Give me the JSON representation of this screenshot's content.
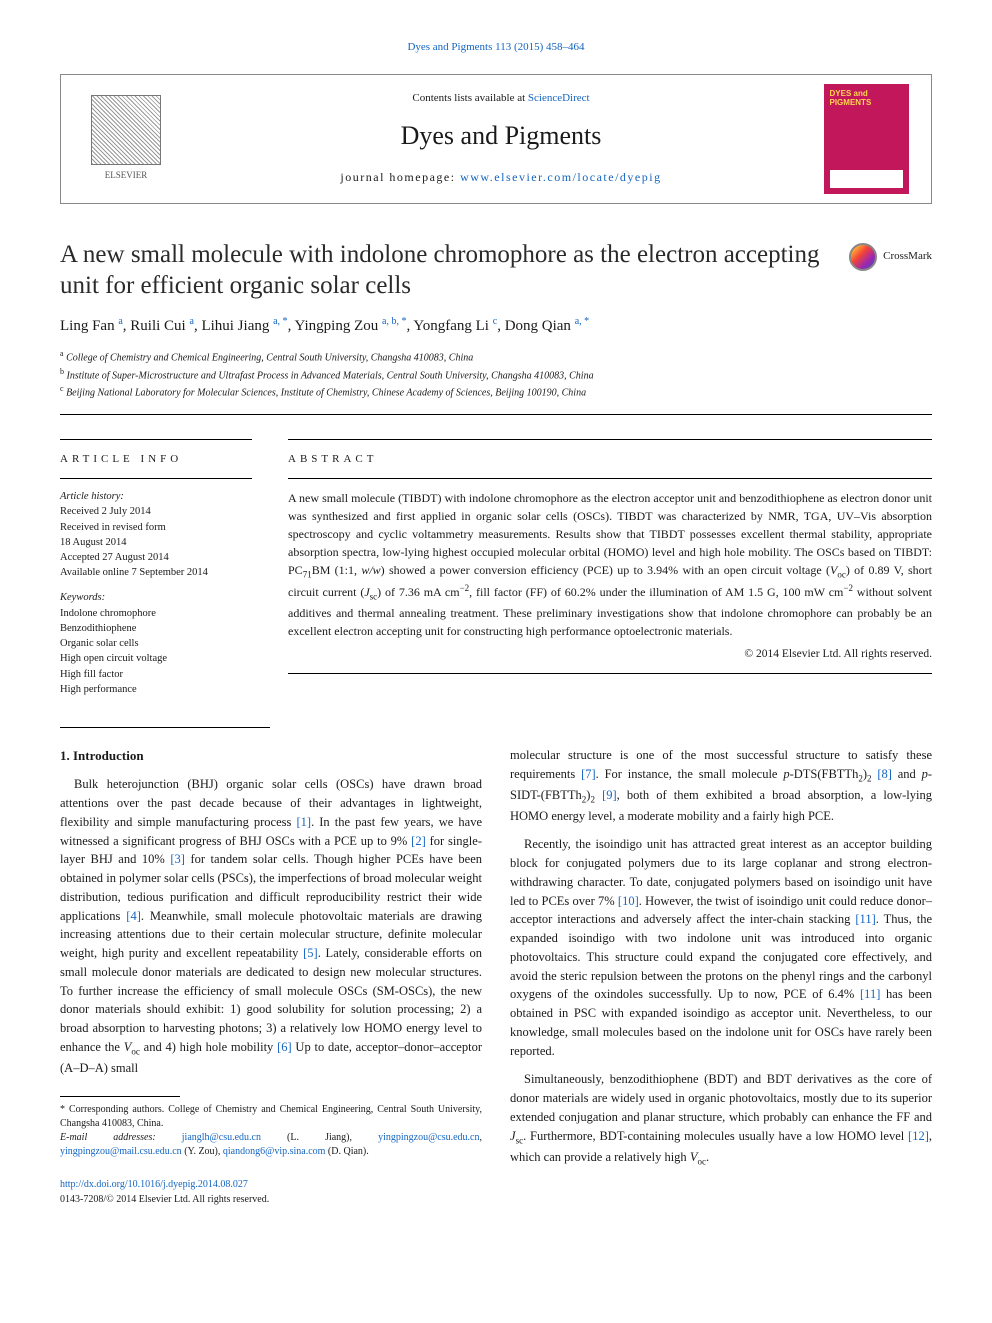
{
  "colors": {
    "link": "#1565c0",
    "cover_bg": "#c2185b",
    "cover_text": "#ffd54f",
    "text": "#1a1a1a"
  },
  "top_citation": "Dyes and Pigments 113 (2015) 458–464",
  "header": {
    "contents_prefix": "Contents lists available at ",
    "contents_link": "ScienceDirect",
    "journal": "Dyes and Pigments",
    "homepage_prefix": "journal homepage: ",
    "homepage_url": "www.elsevier.com/locate/dyepig",
    "publisher": "ELSEVIER",
    "cover_title": "DYES and PIGMENTS"
  },
  "crossmark": "CrossMark",
  "title": "A new small molecule with indolone chromophore as the electron accepting unit for efficient organic solar cells",
  "authors_html": "Ling Fan <sup>a</sup>, Ruili Cui <sup>a</sup>, Lihui Jiang <sup>a, *</sup>, Yingping Zou <sup>a, b, *</sup>, Yongfang Li <sup>c</sup>, Dong Qian <sup>a, *</sup>",
  "affiliations": [
    {
      "sup": "a",
      "text": "College of Chemistry and Chemical Engineering, Central South University, Changsha 410083, China"
    },
    {
      "sup": "b",
      "text": "Institute of Super-Microstructure and Ultrafast Process in Advanced Materials, Central South University, Changsha 410083, China"
    },
    {
      "sup": "c",
      "text": "Beijing National Laboratory for Molecular Sciences, Institute of Chemistry, Chinese Academy of Sciences, Beijing 100190, China"
    }
  ],
  "article_info": {
    "head": "ARTICLE INFO",
    "history_label": "Article history:",
    "history": [
      "Received 2 July 2014",
      "Received in revised form",
      "18 August 2014",
      "Accepted 27 August 2014",
      "Available online 7 September 2014"
    ],
    "keywords_label": "Keywords:",
    "keywords": [
      "Indolone chromophore",
      "Benzodithiophene",
      "Organic solar cells",
      "High open circuit voltage",
      "High fill factor",
      "High performance"
    ]
  },
  "abstract": {
    "head": "ABSTRACT",
    "text": "A new small molecule (TIBDT) with indolone chromophore as the electron acceptor unit and benzodithiophene as electron donor unit was synthesized and first applied in organic solar cells (OSCs). TIBDT was characterized by NMR, TGA, UV–Vis absorption spectroscopy and cyclic voltammetry measurements. Results show that TIBDT possesses excellent thermal stability, appropriate absorption spectra, low-lying highest occupied molecular orbital (HOMO) level and high hole mobility. The OSCs based on TIBDT: PC71BM (1:1, w/w) showed a power conversion efficiency (PCE) up to 3.94% with an open circuit voltage (Voc) of 0.89 V, short circuit current (Jsc) of 7.36 mA cm−2, fill factor (FF) of 60.2% under the illumination of AM 1.5 G, 100 mW cm−2 without solvent additives and thermal annealing treatment. These preliminary investigations show that indolone chromophore can probably be an excellent electron accepting unit for constructing high performance optoelectronic materials.",
    "copyright": "© 2014 Elsevier Ltd. All rights reserved."
  },
  "intro": {
    "heading": "1. Introduction",
    "p1_a": "Bulk heterojunction (BHJ) organic solar cells (OSCs) have drawn broad attentions over the past decade because of their advantages in lightweight, flexibility and simple manufacturing process ",
    "r1": "[1]",
    "p1_b": ". In the past few years, we have witnessed a significant progress of BHJ OSCs with a PCE up to 9% ",
    "r2": "[2]",
    "p1_c": " for single-layer BHJ and 10% ",
    "r3": "[3]",
    "p1_d": " for tandem solar cells. Though higher PCEs have been obtained in polymer solar cells (PSCs), the imperfections of broad molecular weight distribution, tedious purification and difficult reproducibility restrict their wide applications ",
    "r4": "[4]",
    "p1_e": ". Meanwhile, small molecule photovoltaic materials are drawing increasing attentions due to their certain molecular structure, definite molecular weight, high purity and excellent repeatability ",
    "r5": "[5]",
    "p1_f": ". Lately, considerable efforts on small molecule donor materials are dedicated to design new molecular structures. To further increase the efficiency of small molecule OSCs (SM-OSCs), the new donor materials should exhibit: 1) good solubility for solution processing; 2) a broad absorption to harvesting photons; 3) a relatively low HOMO energy level to enhance the ",
    "voc": "Voc",
    "p1_g": " and 4) high hole mobility ",
    "r6": "[6]",
    "p1_h": " Up to date, acceptor–donor–acceptor (A–D–A) small",
    "p1_right_a": "molecular structure is one of the most successful structure to satisfy these requirements ",
    "r7": "[7]",
    "p1_right_b": ". For instance, the small molecule ",
    "mol1": "p-DTS(FBTTh2)2",
    "r8": "[8]",
    "p1_right_c": " and ",
    "mol2": "p-SIDT-(FBTTh2)2",
    "r9": "[9]",
    "p1_right_d": ", both of them exhibited a broad absorption, a low-lying HOMO energy level, a moderate mobility and a fairly high PCE.",
    "p2_a": "Recently, the isoindigo unit has attracted great interest as an acceptor building block for conjugated polymers due to its large coplanar and strong electron-withdrawing character. To date, conjugated polymers based on isoindigo unit have led to PCEs over 7% ",
    "r10": "[10]",
    "p2_b": ". However, the twist of isoindigo unit could reduce donor–acceptor interactions and adversely affect the inter-chain stacking ",
    "r11": "[11]",
    "p2_c": ". Thus, the expanded isoindigo with two indolone unit was introduced into organic photovoltaics. This structure could expand the conjugated core effectively, and avoid the steric repulsion between the protons on the phenyl rings and the carbonyl oxygens of the oxindoles successfully. Up to now, PCE of 6.4% ",
    "r11b": "[11]",
    "p2_d": " has been obtained in PSC with expanded isoindigo as acceptor unit. Nevertheless, to our knowledge, small molecules based on the indolone unit for OSCs have rarely been reported.",
    "p3_a": "Simultaneously, benzodithiophene (BDT) and BDT derivatives as the core of donor materials are widely used in organic photovoltaics, mostly due to its superior extended conjugation and planar structure, which probably can enhance the FF and ",
    "jsc": "Jsc",
    "p3_b": ". Furthermore, BDT-containing molecules usually have a low HOMO level ",
    "r12": "[12]",
    "p3_c": ", which can provide a relatively high ",
    "voc2": "Voc",
    "p3_d": "."
  },
  "footnotes": {
    "corresponding": "* Corresponding authors. College of Chemistry and Chemical Engineering, Central South University, Changsha 410083, China.",
    "emails_label": "E-mail addresses:",
    "emails": [
      {
        "addr": "jianglh@csu.edu.cn",
        "who": "(L. Jiang)"
      },
      {
        "addr": "yingpingzou@csu.edu.cn",
        "who": ""
      },
      {
        "addr": "yingpingzou@mail.csu.edu.cn",
        "who": "(Y. Zou)"
      },
      {
        "addr": "qiandong6@vip.sina.com",
        "who": "(D. Qian)."
      }
    ]
  },
  "doi": {
    "url": "http://dx.doi.org/10.1016/j.dyepig.2014.08.027",
    "issn": "0143-7208/© 2014 Elsevier Ltd. All rights reserved."
  }
}
